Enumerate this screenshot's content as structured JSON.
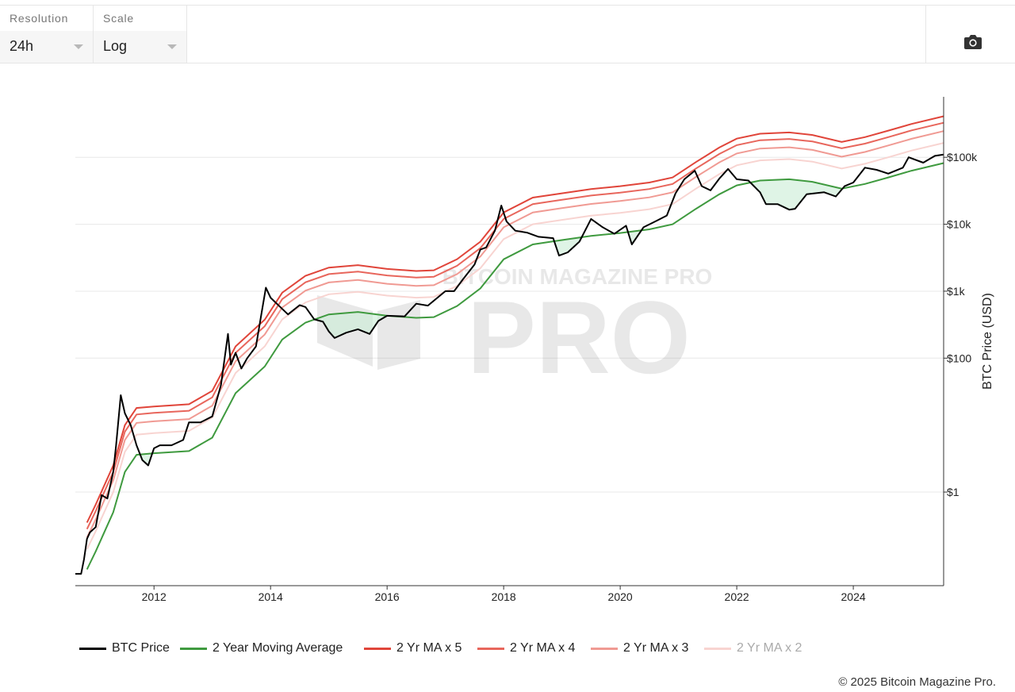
{
  "controls": {
    "resolution": {
      "label": "Resolution",
      "value": "24h"
    },
    "scale": {
      "label": "Scale",
      "value": "Log"
    }
  },
  "toolbar": {
    "screenshot_icon": "camera-icon"
  },
  "chart_data": {
    "type": "line",
    "title": "",
    "xlabel": "",
    "ylabel": "BTC Price (USD)",
    "y_scale": "log",
    "ylim": [
      0.04,
      800000
    ],
    "xlim": [
      2010.65,
      2025.55
    ],
    "x_ticks": [
      {
        "value": 2012,
        "label": "2012"
      },
      {
        "value": 2014,
        "label": "2014"
      },
      {
        "value": 2016,
        "label": "2016"
      },
      {
        "value": 2018,
        "label": "2018"
      },
      {
        "value": 2020,
        "label": "2020"
      },
      {
        "value": 2022,
        "label": "2022"
      },
      {
        "value": 2024,
        "label": "2024"
      }
    ],
    "y_ticks": [
      {
        "value": 1,
        "label": "$1"
      },
      {
        "value": 100,
        "label": "$100"
      },
      {
        "value": 1000,
        "label": "$1k"
      },
      {
        "value": 10000,
        "label": "$10k"
      },
      {
        "value": 100000,
        "label": "$100k"
      }
    ],
    "watermark": "BITCOIN MAGAZINE PRO",
    "legend_position": "bottom",
    "series": [
      {
        "name": "BTC Price",
        "color": "#000000",
        "role": "price",
        "points": [
          [
            2010.65,
            0.06
          ],
          [
            2010.75,
            0.06
          ],
          [
            2010.8,
            0.1
          ],
          [
            2010.85,
            0.2
          ],
          [
            2010.9,
            0.25
          ],
          [
            2011.0,
            0.3
          ],
          [
            2011.1,
            0.9
          ],
          [
            2011.2,
            0.8
          ],
          [
            2011.3,
            2.0
          ],
          [
            2011.35,
            5
          ],
          [
            2011.43,
            28
          ],
          [
            2011.5,
            15
          ],
          [
            2011.6,
            10
          ],
          [
            2011.7,
            5
          ],
          [
            2011.8,
            3
          ],
          [
            2011.9,
            2.5
          ],
          [
            2012.0,
            4.5
          ],
          [
            2012.1,
            5
          ],
          [
            2012.3,
            5
          ],
          [
            2012.5,
            6
          ],
          [
            2012.6,
            11
          ],
          [
            2012.8,
            11
          ],
          [
            2013.0,
            13.5
          ],
          [
            2013.15,
            40
          ],
          [
            2013.27,
            230
          ],
          [
            2013.32,
            80
          ],
          [
            2013.4,
            120
          ],
          [
            2013.5,
            70
          ],
          [
            2013.6,
            100
          ],
          [
            2013.75,
            150
          ],
          [
            2013.85,
            500
          ],
          [
            2013.92,
            1130
          ],
          [
            2014.0,
            800
          ],
          [
            2014.15,
            600
          ],
          [
            2014.3,
            450
          ],
          [
            2014.5,
            620
          ],
          [
            2014.6,
            580
          ],
          [
            2014.75,
            380
          ],
          [
            2014.9,
            350
          ],
          [
            2015.0,
            250
          ],
          [
            2015.1,
            200
          ],
          [
            2015.3,
            240
          ],
          [
            2015.5,
            270
          ],
          [
            2015.7,
            230
          ],
          [
            2015.85,
            360
          ],
          [
            2016.0,
            430
          ],
          [
            2016.3,
            420
          ],
          [
            2016.5,
            650
          ],
          [
            2016.7,
            610
          ],
          [
            2017.0,
            1000
          ],
          [
            2017.15,
            1000
          ],
          [
            2017.3,
            1500
          ],
          [
            2017.5,
            2500
          ],
          [
            2017.6,
            4200
          ],
          [
            2017.7,
            4500
          ],
          [
            2017.85,
            8000
          ],
          [
            2017.96,
            19000
          ],
          [
            2018.05,
            11000
          ],
          [
            2018.2,
            8000
          ],
          [
            2018.4,
            7500
          ],
          [
            2018.6,
            6500
          ],
          [
            2018.85,
            6200
          ],
          [
            2018.95,
            3400
          ],
          [
            2019.1,
            3800
          ],
          [
            2019.3,
            5500
          ],
          [
            2019.5,
            12000
          ],
          [
            2019.7,
            9000
          ],
          [
            2019.9,
            7200
          ],
          [
            2020.1,
            9500
          ],
          [
            2020.2,
            5000
          ],
          [
            2020.4,
            9000
          ],
          [
            2020.6,
            11000
          ],
          [
            2020.8,
            13500
          ],
          [
            2020.95,
            29000
          ],
          [
            2021.1,
            47000
          ],
          [
            2021.28,
            63000
          ],
          [
            2021.4,
            37000
          ],
          [
            2021.55,
            32000
          ],
          [
            2021.7,
            48000
          ],
          [
            2021.85,
            67000
          ],
          [
            2022.0,
            47000
          ],
          [
            2022.2,
            45000
          ],
          [
            2022.4,
            30000
          ],
          [
            2022.5,
            20000
          ],
          [
            2022.7,
            20000
          ],
          [
            2022.9,
            16500
          ],
          [
            2023.0,
            17000
          ],
          [
            2023.2,
            28000
          ],
          [
            2023.5,
            30000
          ],
          [
            2023.7,
            26000
          ],
          [
            2023.85,
            37000
          ],
          [
            2024.0,
            42000
          ],
          [
            2024.2,
            70000
          ],
          [
            2024.4,
            65000
          ],
          [
            2024.6,
            57000
          ],
          [
            2024.85,
            70000
          ],
          [
            2024.95,
            100000
          ],
          [
            2025.2,
            83000
          ],
          [
            2025.4,
            105000
          ],
          [
            2025.55,
            110000
          ]
        ]
      },
      {
        "name": "2 Year Moving Average",
        "color": "#3f9a3f",
        "role": "ma",
        "points": [
          [
            2010.85,
            0.07
          ],
          [
            2011.0,
            0.13
          ],
          [
            2011.3,
            0.5
          ],
          [
            2011.5,
            2.0
          ],
          [
            2011.7,
            3.6
          ],
          [
            2012.0,
            3.8
          ],
          [
            2012.6,
            4.1
          ],
          [
            2013.0,
            6.5
          ],
          [
            2013.4,
            30
          ],
          [
            2013.9,
            75
          ],
          [
            2014.2,
            190
          ],
          [
            2014.6,
            340
          ],
          [
            2015.0,
            450
          ],
          [
            2015.5,
            490
          ],
          [
            2016.0,
            430
          ],
          [
            2016.5,
            400
          ],
          [
            2016.8,
            410
          ],
          [
            2017.2,
            600
          ],
          [
            2017.6,
            1100
          ],
          [
            2018.0,
            3000
          ],
          [
            2018.5,
            5000
          ],
          [
            2019.0,
            5800
          ],
          [
            2019.5,
            6700
          ],
          [
            2020.0,
            7400
          ],
          [
            2020.5,
            8400
          ],
          [
            2020.9,
            10000
          ],
          [
            2021.3,
            17000
          ],
          [
            2021.7,
            28000
          ],
          [
            2022.0,
            38000
          ],
          [
            2022.4,
            45000
          ],
          [
            2022.9,
            47000
          ],
          [
            2023.3,
            43000
          ],
          [
            2023.8,
            34000
          ],
          [
            2024.2,
            40000
          ],
          [
            2024.6,
            50000
          ],
          [
            2025.0,
            63000
          ],
          [
            2025.55,
            82000
          ]
        ]
      },
      {
        "name": "2 Yr MA x 5",
        "color": "#e0453a",
        "role": "mult",
        "multiplier": 5
      },
      {
        "name": "2 Yr MA x 4",
        "color": "#e8665c",
        "role": "mult",
        "multiplier": 4
      },
      {
        "name": "2 Yr MA x 3",
        "color": "#f09a93",
        "role": "mult",
        "multiplier": 3
      },
      {
        "name": "2 Yr MA x 2",
        "color": "#f8d4d1",
        "role": "mult",
        "multiplier": 2,
        "legend_faded": true
      }
    ]
  },
  "footer": {
    "copyright": "© 2025 Bitcoin Magazine Pro."
  }
}
